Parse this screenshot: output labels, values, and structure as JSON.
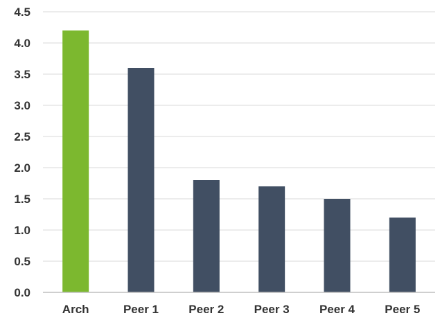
{
  "chart_data": {
    "type": "bar",
    "categories": [
      "Arch",
      "Peer 1",
      "Peer 2",
      "Peer 3",
      "Peer 4",
      "Peer 5"
    ],
    "values": [
      4.2,
      3.6,
      1.8,
      1.7,
      1.5,
      1.2
    ],
    "colors": [
      "#7cb82f",
      "#414f63",
      "#414f63",
      "#414f63",
      "#414f63",
      "#414f63"
    ],
    "ylim": [
      0,
      4.5
    ],
    "yticks": [
      "0.0",
      "0.5",
      "1.0",
      "1.5",
      "2.0",
      "2.5",
      "3.0",
      "3.5",
      "4.0",
      "4.5"
    ],
    "grid": true,
    "title": "",
    "xlabel": "",
    "ylabel": ""
  }
}
